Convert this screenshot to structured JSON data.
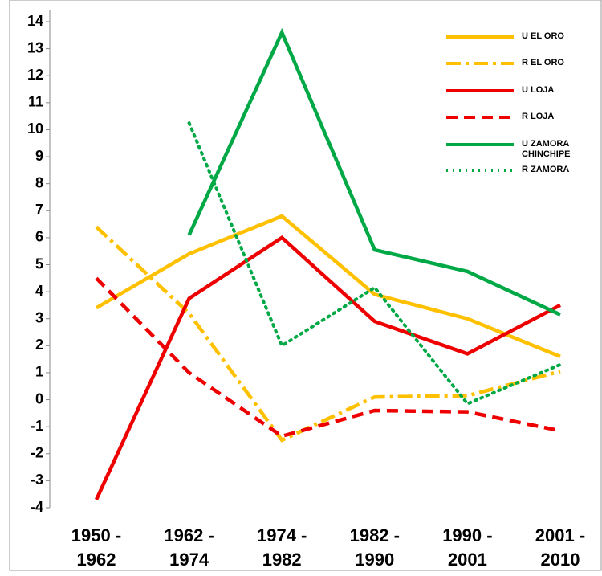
{
  "chart_data": {
    "type": "line",
    "categories": [
      "1950 - 1962",
      "1962 - 1974",
      "1974 - 1982",
      "1982 - 1990",
      "1990 - 2001",
      "2001 - 2010"
    ],
    "series": [
      {
        "name": "U EL ORO",
        "color": "#ffc000",
        "dash": "solid",
        "values": [
          3.4,
          5.4,
          6.8,
          3.9,
          3.0,
          1.6
        ]
      },
      {
        "name": "R  EL ORO",
        "color": "#ffc000",
        "dash": "dashdot",
        "values": [
          6.4,
          3.2,
          -1.5,
          0.1,
          0.15,
          1.05
        ]
      },
      {
        "name": "U LOJA",
        "color": "#ee0000",
        "dash": "solid",
        "values": [
          -3.7,
          3.75,
          6.0,
          2.9,
          1.7,
          3.5
        ]
      },
      {
        "name": "R  LOJA",
        "color": "#ee0000",
        "dash": "dashed",
        "values": [
          4.5,
          1.0,
          -1.35,
          -0.4,
          -0.45,
          -1.15
        ]
      },
      {
        "name": "U ZAMORA CHINCHIPE",
        "color": "#00a846",
        "dash": "solid",
        "values": [
          null,
          6.1,
          13.6,
          5.55,
          4.75,
          3.15
        ]
      },
      {
        "name": "R  ZAMORA",
        "color": "#00a846",
        "dash": "dotted",
        "values": [
          null,
          10.25,
          2.0,
          4.15,
          -0.15,
          1.3
        ]
      }
    ],
    "ylim": [
      -4,
      14
    ],
    "yticks": [
      -4,
      -3,
      -2,
      -1,
      0,
      1,
      2,
      3,
      4,
      5,
      6,
      7,
      8,
      9,
      10,
      11,
      12,
      13,
      14
    ],
    "legend": "top-right"
  }
}
